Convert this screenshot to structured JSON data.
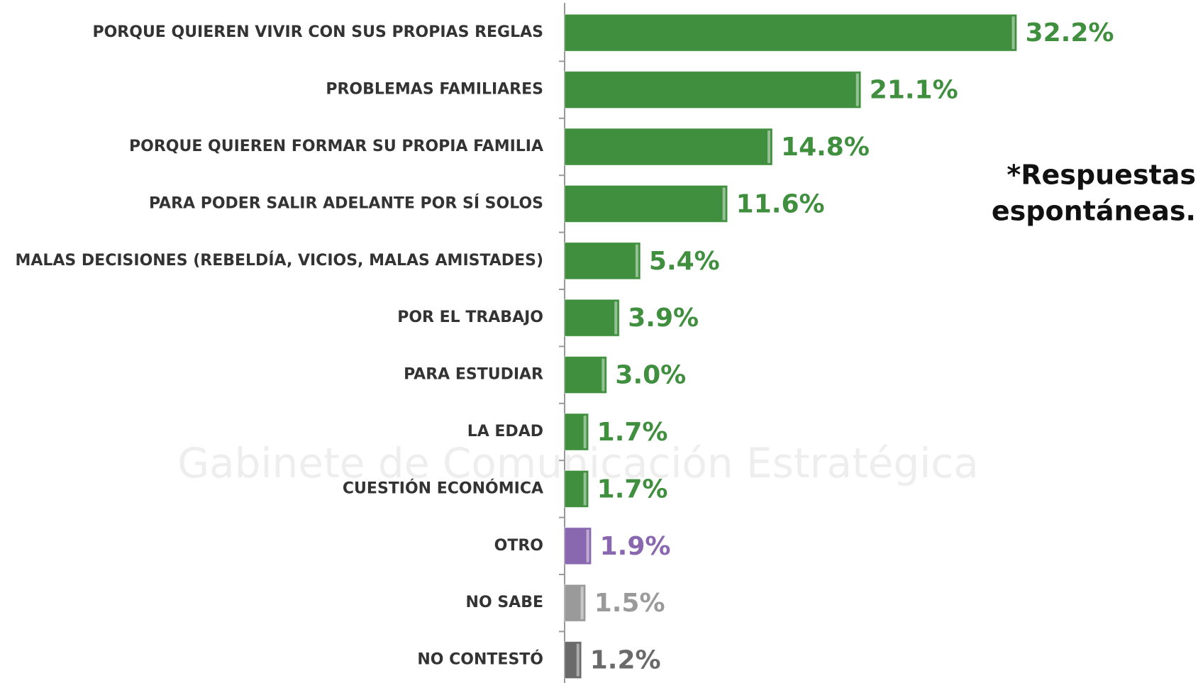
{
  "chart_data": {
    "type": "barh",
    "categories": [
      "PORQUE QUIEREN VIVIR CON SUS PROPIAS REGLAS",
      "PROBLEMAS FAMILIARES",
      "PORQUE QUIEREN FORMAR SU PROPIA FAMILIA",
      "PARA PODER SALIR ADELANTE POR SÍ SOLOS",
      "MALAS DECISIONES (REBELDÍA, VICIOS, MALAS AMISTADES)",
      "POR EL TRABAJO",
      "PARA ESTUDIAR",
      "LA EDAD",
      "CUESTIÓN ECONÓMICA",
      "OTRO",
      "NO SABE",
      "NO CONTESTÓ"
    ],
    "values": [
      32.2,
      21.1,
      14.8,
      11.6,
      5.4,
      3.9,
      3.0,
      1.7,
      1.7,
      1.9,
      1.5,
      1.2
    ],
    "value_labels": [
      "32.2%",
      "21.1%",
      "14.8%",
      "11.6%",
      "5.4%",
      "3.9%",
      "3.0%",
      "1.7%",
      "1.7%",
      "1.9%",
      "1.5%",
      "1.2%"
    ],
    "colors": [
      "#3f8f3f",
      "#3f8f3f",
      "#3f8f3f",
      "#3f8f3f",
      "#3f8f3f",
      "#3f8f3f",
      "#3f8f3f",
      "#3f8f3f",
      "#3f8f3f",
      "#8a68b0",
      "#9a9a9a",
      "#6a6a6a"
    ],
    "xlim": [
      0,
      35
    ],
    "annotation": [
      "*Respuestas",
      "espontáneas."
    ],
    "watermark": "Gabinete de Comunicación Estratégica"
  }
}
